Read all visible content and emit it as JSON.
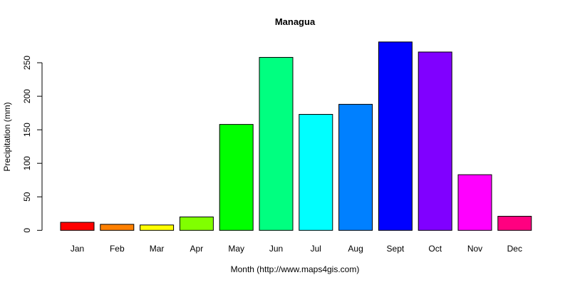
{
  "chart_data": {
    "type": "bar",
    "title": "Managua",
    "xlabel": "Month (http://www.maps4gis.com)",
    "ylabel": "Precipitation (mm)",
    "categories": [
      "Jan",
      "Feb",
      "Mar",
      "Apr",
      "May",
      "Jun",
      "Jul",
      "Aug",
      "Sept",
      "Oct",
      "Nov",
      "Dec"
    ],
    "values": [
      12,
      9,
      8,
      20,
      158,
      258,
      173,
      188,
      281,
      266,
      83,
      21
    ],
    "colors": [
      "#FF0000",
      "#FF8000",
      "#FFFF00",
      "#80FF00",
      "#00FF00",
      "#00FF80",
      "#00FFFF",
      "#0080FF",
      "#0000FF",
      "#8000FF",
      "#FF00FF",
      "#FF0080"
    ],
    "yticks": [
      0,
      50,
      100,
      150,
      200,
      250
    ],
    "ylim": [
      0,
      281
    ],
    "grid": false,
    "legend": null
  }
}
